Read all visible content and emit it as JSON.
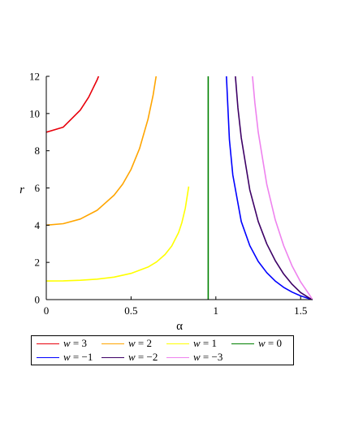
{
  "chart_data": {
    "type": "line",
    "xlabel": "α",
    "ylabel": "r",
    "xlim": [
      0,
      1.5708
    ],
    "ylim": [
      0,
      12
    ],
    "x_ticks": [
      {
        "value": 0,
        "label": "0"
      },
      {
        "value": 0.5,
        "label": "0.5"
      },
      {
        "value": 1,
        "label": "1"
      },
      {
        "value": 1.5,
        "label": "1.5"
      }
    ],
    "y_ticks": [
      {
        "value": 0,
        "label": "0"
      },
      {
        "value": 2,
        "label": "2"
      },
      {
        "value": 4,
        "label": "4"
      },
      {
        "value": 6,
        "label": "6"
      },
      {
        "value": 8,
        "label": "8"
      },
      {
        "value": 10,
        "label": "10"
      },
      {
        "value": 12,
        "label": "12"
      }
    ],
    "legend_position": "bottom",
    "series": [
      {
        "name": "w = 3",
        "color": "#e8000b",
        "x": [
          0,
          0.1,
          0.2,
          0.25,
          0.3,
          0.33,
          0.36
        ],
        "y": [
          9.0,
          9.27,
          10.18,
          10.88,
          11.81,
          12.5,
          13.3
        ]
      },
      {
        "name": "w = 2",
        "color": "#ffa500",
        "x": [
          0,
          0.1,
          0.2,
          0.3,
          0.4,
          0.45,
          0.5,
          0.55,
          0.6,
          0.63,
          0.66
        ],
        "y": [
          4.0,
          4.08,
          4.33,
          4.8,
          5.61,
          6.2,
          7.0,
          8.11,
          9.7,
          11.0,
          12.7
        ]
      },
      {
        "name": "w = 1",
        "color": "#ffff00",
        "x": [
          0,
          0.1,
          0.2,
          0.3,
          0.4,
          0.5,
          0.6,
          0.65,
          0.7,
          0.74,
          0.78,
          0.8,
          0.82,
          0.84
        ],
        "y": [
          1.0,
          1.01,
          1.04,
          1.1,
          1.21,
          1.41,
          1.75,
          2.02,
          2.42,
          2.88,
          3.6,
          4.14,
          4.91,
          6.08
        ]
      },
      {
        "name": "w = 0",
        "color": "#008000",
        "x": [
          0.955,
          0.955
        ],
        "y": [
          0,
          12
        ]
      },
      {
        "name": "w = −1",
        "color": "#0000ff",
        "x": [
          1.06,
          1.08,
          1.1,
          1.15,
          1.2,
          1.25,
          1.3,
          1.35,
          1.4,
          1.45,
          1.5,
          1.55,
          1.57
        ],
        "y": [
          12.5,
          8.6,
          6.7,
          4.2,
          2.9,
          2.05,
          1.45,
          1.0,
          0.66,
          0.4,
          0.2,
          0.05,
          0.0
        ]
      },
      {
        "name": "w = −2",
        "color": "#3d0066",
        "x": [
          1.11,
          1.13,
          1.15,
          1.2,
          1.25,
          1.3,
          1.35,
          1.4,
          1.45,
          1.5,
          1.55,
          1.57
        ],
        "y": [
          12.6,
          10.3,
          8.7,
          5.9,
          4.2,
          3.0,
          2.1,
          1.38,
          0.82,
          0.38,
          0.09,
          0.0
        ]
      },
      {
        "name": "w = −3",
        "color": "#ee82ee",
        "x": [
          1.21,
          1.23,
          1.25,
          1.3,
          1.35,
          1.4,
          1.45,
          1.5,
          1.55,
          1.57
        ],
        "y": [
          12.6,
          10.6,
          9.0,
          6.2,
          4.3,
          2.9,
          1.8,
          0.95,
          0.28,
          0.0
        ]
      }
    ]
  }
}
